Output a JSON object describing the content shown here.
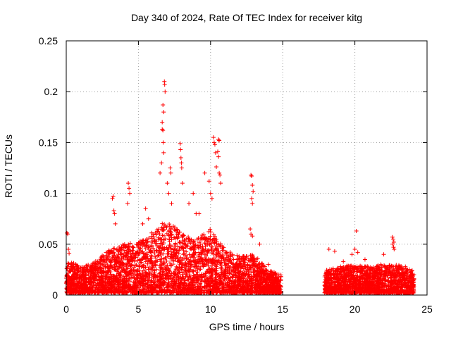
{
  "chart_data": {
    "type": "scatter",
    "title": "Day 340 of 2024, Rate Of TEC Index for receiver kitg",
    "xlabel": "GPS time / hours",
    "ylabel": "ROTI / TECUs",
    "xlim": [
      0,
      25
    ],
    "ylim": [
      0,
      0.25
    ],
    "xticks": [
      0,
      5,
      10,
      15,
      20,
      25
    ],
    "xtick_labels": [
      "0",
      "5",
      "10",
      "15",
      "20",
      "25"
    ],
    "yticks": [
      0,
      0.05,
      0.1,
      0.15,
      0.2,
      0.25
    ],
    "ytick_labels": [
      "0",
      "0.05",
      "0.1",
      "0.15",
      "0.2",
      "0.25"
    ],
    "grid": true,
    "marker": "+",
    "marker_color": "#ff0000",
    "series": [
      {
        "name": "ROTI",
        "points": [
          [
            0.05,
            0.061
          ],
          [
            0.1,
            0.06
          ],
          [
            0.15,
            0.045
          ],
          [
            0.2,
            0.041
          ],
          [
            0.3,
            0.03
          ],
          [
            3.2,
            0.095
          ],
          [
            3.25,
            0.097
          ],
          [
            3.3,
            0.083
          ],
          [
            3.35,
            0.08
          ],
          [
            3.4,
            0.07
          ],
          [
            4.3,
            0.11
          ],
          [
            4.35,
            0.105
          ],
          [
            4.4,
            0.1
          ],
          [
            4.25,
            0.09
          ],
          [
            5.3,
            0.07
          ],
          [
            5.5,
            0.085
          ],
          [
            5.7,
            0.075
          ],
          [
            6.5,
            0.12
          ],
          [
            6.6,
            0.13
          ],
          [
            6.65,
            0.163
          ],
          [
            6.7,
            0.162
          ],
          [
            6.72,
            0.15
          ],
          [
            6.75,
            0.14
          ],
          [
            6.8,
            0.21
          ],
          [
            6.82,
            0.207
          ],
          [
            6.85,
            0.2
          ],
          [
            6.7,
            0.187
          ],
          [
            6.75,
            0.18
          ],
          [
            6.65,
            0.17
          ],
          [
            7.0,
            0.11
          ],
          [
            7.1,
            0.1
          ],
          [
            7.2,
            0.125
          ],
          [
            7.25,
            0.12
          ],
          [
            7.3,
            0.09
          ],
          [
            7.9,
            0.149
          ],
          [
            7.92,
            0.143
          ],
          [
            7.95,
            0.135
          ],
          [
            7.98,
            0.13
          ],
          [
            8.0,
            0.125
          ],
          [
            8.05,
            0.11
          ],
          [
            8.5,
            0.09
          ],
          [
            8.8,
            0.1
          ],
          [
            9.0,
            0.08
          ],
          [
            9.2,
            0.08
          ],
          [
            9.6,
            0.12
          ],
          [
            9.9,
            0.112
          ],
          [
            10.0,
            0.1
          ],
          [
            10.1,
            0.095
          ],
          [
            10.2,
            0.155
          ],
          [
            10.25,
            0.15
          ],
          [
            10.3,
            0.148
          ],
          [
            10.35,
            0.14
          ],
          [
            10.4,
            0.126
          ],
          [
            10.55,
            0.153
          ],
          [
            10.6,
            0.152
          ],
          [
            10.5,
            0.141
          ],
          [
            10.55,
            0.136
          ],
          [
            10.6,
            0.12
          ],
          [
            10.65,
            0.118
          ],
          [
            10.7,
            0.11
          ],
          [
            12.8,
            0.118
          ],
          [
            12.85,
            0.117
          ],
          [
            12.9,
            0.108
          ],
          [
            12.95,
            0.102
          ],
          [
            12.85,
            0.095
          ],
          [
            12.9,
            0.09
          ],
          [
            12.75,
            0.065
          ],
          [
            12.8,
            0.06
          ],
          [
            12.9,
            0.058
          ],
          [
            13.4,
            0.05
          ],
          [
            14.0,
            0.03
          ],
          [
            14.5,
            0.02
          ],
          [
            18.2,
            0.045
          ],
          [
            18.6,
            0.043
          ],
          [
            19.2,
            0.033
          ],
          [
            19.8,
            0.04
          ],
          [
            20.1,
            0.063
          ],
          [
            20.0,
            0.045
          ],
          [
            20.2,
            0.042
          ],
          [
            20.7,
            0.035
          ],
          [
            21.8,
            0.03
          ],
          [
            22.0,
            0.04
          ],
          [
            22.6,
            0.057
          ],
          [
            22.65,
            0.055
          ],
          [
            22.7,
            0.052
          ],
          [
            22.62,
            0.05
          ],
          [
            22.68,
            0.047
          ],
          [
            22.72,
            0.045
          ],
          [
            23.5,
            0.028
          ],
          [
            24.0,
            0.02
          ]
        ],
        "dense_envelope": {
          "note": "Continuous dense band of ROTI samples; upper envelope per hour (data gap between ~14.9h and ~17.9h)",
          "segments": [
            {
              "x_range": [
                0.0,
                14.9
              ],
              "hours": [
                0,
                1,
                2,
                3,
                4,
                5,
                6,
                7,
                8,
                9,
                10,
                11,
                12,
                13,
                14,
                14.9
              ],
              "upper": [
                0.035,
                0.028,
                0.033,
                0.045,
                0.05,
                0.052,
                0.062,
                0.075,
                0.06,
                0.055,
                0.065,
                0.045,
                0.038,
                0.04,
                0.025,
                0.02
              ]
            },
            {
              "x_range": [
                17.9,
                24.1
              ],
              "hours": [
                17.9,
                18,
                19,
                20,
                21,
                22,
                23,
                24,
                24.1
              ],
              "upper": [
                0.018,
                0.025,
                0.028,
                0.03,
                0.028,
                0.03,
                0.03,
                0.024,
                0.02
              ]
            }
          ],
          "lower": 0.002
        }
      }
    ]
  }
}
